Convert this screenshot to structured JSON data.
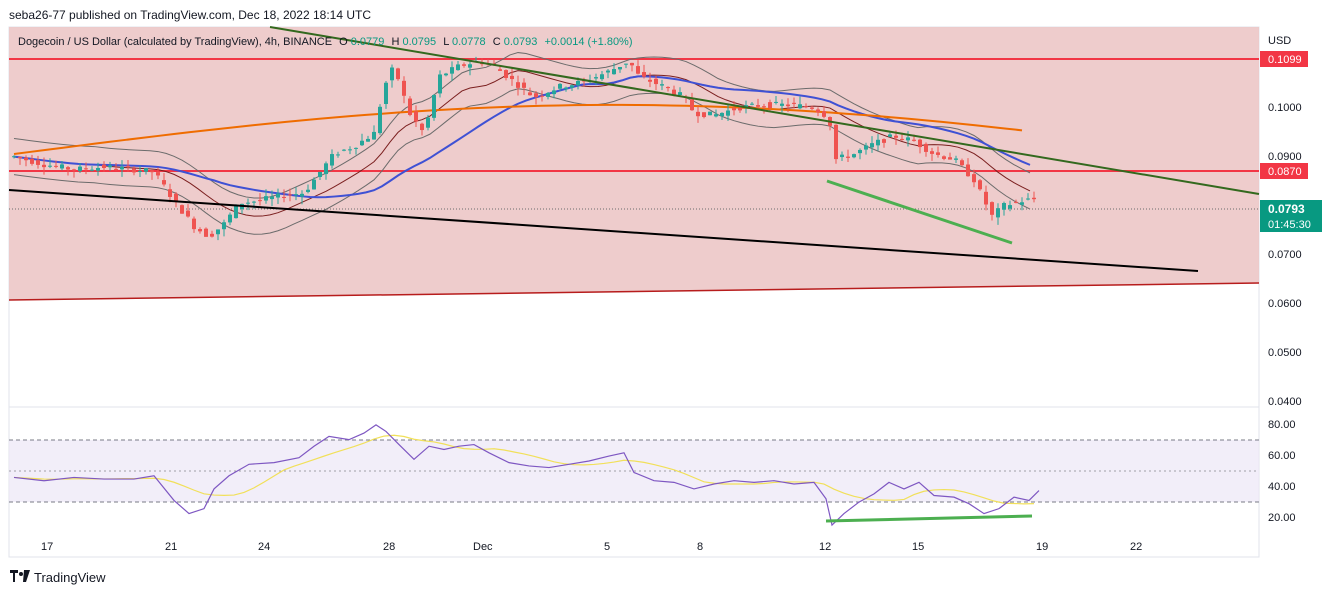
{
  "header": {
    "published": "seba26-77 published on TradingView.com, Dec 18, 2022 18:14 UTC"
  },
  "legend": {
    "symbol": "Dogecoin / US Dollar (calculated by TradingView), 4h, BINANCE",
    "o_label": "O",
    "o_value": "0.0779",
    "h_label": "H",
    "h_value": "0.0795",
    "l_label": "L",
    "l_value": "0.0778",
    "c_label": "C",
    "c_value": "0.0793",
    "change": "+0.0014 (+1.80%)"
  },
  "price_axis": {
    "currency": "USD",
    "ticks": [
      "0.1000",
      "0.0900",
      "0.0700",
      "0.0600",
      "0.0500",
      "0.0400"
    ],
    "level_high": "0.1099",
    "level_mid": "0.0870",
    "last_price": "0.0793",
    "countdown": "01:45:30"
  },
  "rsi_axis": {
    "ticks": [
      "80.00",
      "60.00",
      "40.00",
      "20.00"
    ]
  },
  "time_axis": {
    "labels": [
      "17",
      "21",
      "24",
      "28",
      "Dec",
      "5",
      "8",
      "12",
      "15",
      "19",
      "22"
    ]
  },
  "footer": {
    "brand": "TradingView"
  },
  "colors": {
    "bg_zone": "#f0c8c8",
    "resistance": "#f23645",
    "support_line": "#b71c1c",
    "green_trend": "#33691e",
    "black_trend": "#000000",
    "ma_blue": "#3f51d4",
    "ma_orange": "#ef6c00",
    "ma_black": "#1a0a0a",
    "bb": "#7b1f1f",
    "candle_up": "#26a69a",
    "candle_down": "#ef5350",
    "rsi": "#7e57c2",
    "rsi_ma": "#f1e05a",
    "divergence": "#4caf50",
    "last_price_bg": "#089981"
  },
  "chart_data": {
    "type": "candlestick",
    "symbol": "DOGE/USD",
    "timeframe": "4h",
    "x_labels": [
      "17",
      "21",
      "24",
      "28",
      "Dec",
      "5",
      "8",
      "12",
      "15",
      "19",
      "22"
    ],
    "price_ylim": [
      0.04,
      0.112
    ],
    "rsi_ylim": [
      15,
      85
    ],
    "horizontal_levels": [
      0.1099,
      0.087
    ],
    "last_close": 0.0793,
    "price_path": [
      [
        0,
        0.0875
      ],
      [
        30,
        0.086
      ],
      [
        60,
        0.085
      ],
      [
        90,
        0.0855
      ],
      [
        120,
        0.085
      ],
      [
        140,
        0.0845
      ],
      [
        160,
        0.079
      ],
      [
        180,
        0.074
      ],
      [
        195,
        0.072
      ],
      [
        210,
        0.0745
      ],
      [
        225,
        0.0785
      ],
      [
        245,
        0.079
      ],
      [
        270,
        0.08
      ],
      [
        290,
        0.0805
      ],
      [
        300,
        0.083
      ],
      [
        320,
        0.088
      ],
      [
        340,
        0.0895
      ],
      [
        360,
        0.092
      ],
      [
        370,
        0.101
      ],
      [
        380,
        0.105
      ],
      [
        395,
        0.096
      ],
      [
        410,
        0.092
      ],
      [
        425,
        0.103
      ],
      [
        445,
        0.105
      ],
      [
        465,
        0.106
      ],
      [
        480,
        0.105
      ],
      [
        500,
        0.102
      ],
      [
        520,
        0.099
      ],
      [
        545,
        0.101
      ],
      [
        570,
        0.102
      ],
      [
        595,
        0.104
      ],
      [
        615,
        0.106
      ],
      [
        625,
        0.103
      ],
      [
        650,
        0.101
      ],
      [
        670,
        0.099
      ],
      [
        680,
        0.096
      ],
      [
        700,
        0.0955
      ],
      [
        725,
        0.097
      ],
      [
        750,
        0.0975
      ],
      [
        775,
        0.0975
      ],
      [
        800,
        0.097
      ],
      [
        815,
        0.095
      ],
      [
        822,
        0.087
      ],
      [
        840,
        0.088
      ],
      [
        860,
        0.09
      ],
      [
        880,
        0.0915
      ],
      [
        900,
        0.0905
      ],
      [
        920,
        0.088
      ],
      [
        940,
        0.087
      ],
      [
        960,
        0.083
      ],
      [
        978,
        0.076
      ],
      [
        990,
        0.078
      ],
      [
        1010,
        0.079
      ],
      [
        1022,
        0.0793
      ]
    ],
    "rsi_path": [
      [
        0,
        47
      ],
      [
        30,
        45
      ],
      [
        60,
        47
      ],
      [
        90,
        46
      ],
      [
        120,
        46
      ],
      [
        140,
        48
      ],
      [
        160,
        33
      ],
      [
        175,
        25
      ],
      [
        190,
        28
      ],
      [
        200,
        40
      ],
      [
        215,
        48
      ],
      [
        235,
        55
      ],
      [
        260,
        56
      ],
      [
        285,
        59
      ],
      [
        300,
        66
      ],
      [
        315,
        72
      ],
      [
        335,
        70
      ],
      [
        350,
        74
      ],
      [
        362,
        79
      ],
      [
        372,
        75
      ],
      [
        385,
        67
      ],
      [
        400,
        58
      ],
      [
        415,
        66
      ],
      [
        430,
        64
      ],
      [
        445,
        66
      ],
      [
        460,
        67
      ],
      [
        475,
        62
      ],
      [
        495,
        56
      ],
      [
        515,
        54
      ],
      [
        535,
        53
      ],
      [
        555,
        55
      ],
      [
        575,
        57
      ],
      [
        595,
        60
      ],
      [
        610,
        62
      ],
      [
        620,
        50
      ],
      [
        640,
        45
      ],
      [
        660,
        44
      ],
      [
        680,
        40
      ],
      [
        700,
        43
      ],
      [
        720,
        45
      ],
      [
        740,
        44
      ],
      [
        760,
        45
      ],
      [
        780,
        43
      ],
      [
        800,
        44
      ],
      [
        812,
        34
      ],
      [
        818,
        18
      ],
      [
        830,
        25
      ],
      [
        845,
        32
      ],
      [
        860,
        37
      ],
      [
        875,
        44
      ],
      [
        890,
        40
      ],
      [
        905,
        44
      ],
      [
        920,
        36
      ],
      [
        940,
        35
      ],
      [
        955,
        31
      ],
      [
        970,
        25
      ],
      [
        985,
        28
      ],
      [
        1000,
        35
      ],
      [
        1015,
        33
      ],
      [
        1025,
        39
      ]
    ]
  }
}
